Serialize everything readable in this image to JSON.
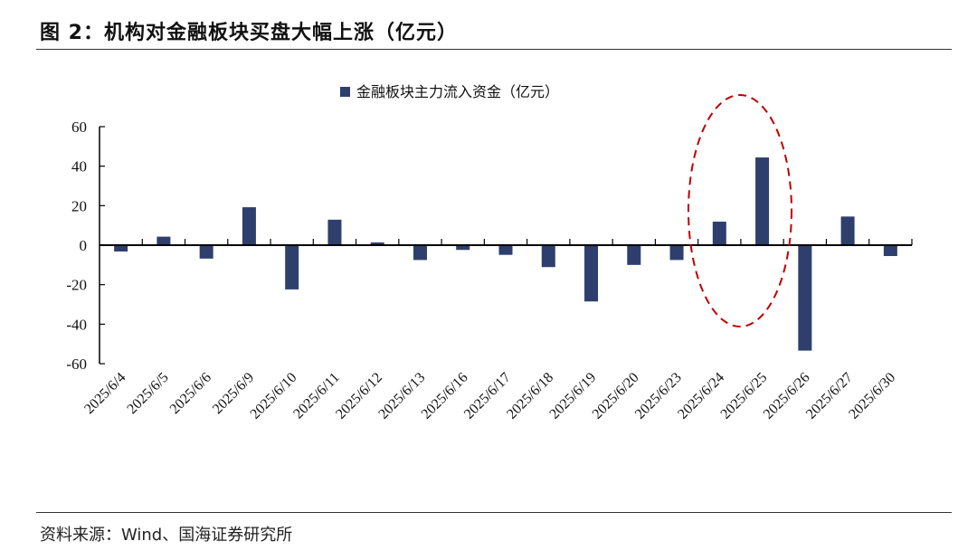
{
  "header": {
    "title": "图 2：机构对金融板块买盘大幅上涨（亿元）"
  },
  "footer": {
    "source": "资料来源：Wind、国海证券研究所"
  },
  "chart_data": {
    "type": "bar",
    "title": "",
    "legend": {
      "entries": [
        "金融板块主力流入资金（亿元）"
      ],
      "placement": "top-center"
    },
    "categories": [
      "2025/6/4",
      "2025/6/5",
      "2025/6/6",
      "2025/6/9",
      "2025/6/10",
      "2025/6/11",
      "2025/6/12",
      "2025/6/13",
      "2025/6/16",
      "2025/6/17",
      "2025/6/18",
      "2025/6/19",
      "2025/6/20",
      "2025/6/23",
      "2025/6/24",
      "2025/6/25",
      "2025/6/26",
      "2025/6/27",
      "2025/6/30"
    ],
    "series": [
      {
        "name": "金融板块主力流入资金（亿元）",
        "color": "#2E3F6E",
        "values": [
          -3.2,
          4.3,
          -6.8,
          19.2,
          -22.4,
          12.9,
          1.4,
          -7.5,
          -2.4,
          -4.9,
          -11.1,
          -28.5,
          -10,
          -7.5,
          11.9,
          44.4,
          -53.4,
          14.5,
          -5.5
        ]
      }
    ],
    "ylim": [
      -60,
      60
    ],
    "yticks": [
      60,
      40,
      20,
      0,
      -20,
      -40,
      -60
    ],
    "xlabel": "",
    "ylabel": "",
    "grid": false,
    "annotation": {
      "type": "dashed-ellipse",
      "color": "#C00000",
      "highlights": [
        "2025/6/24",
        "2025/6/25"
      ]
    }
  }
}
